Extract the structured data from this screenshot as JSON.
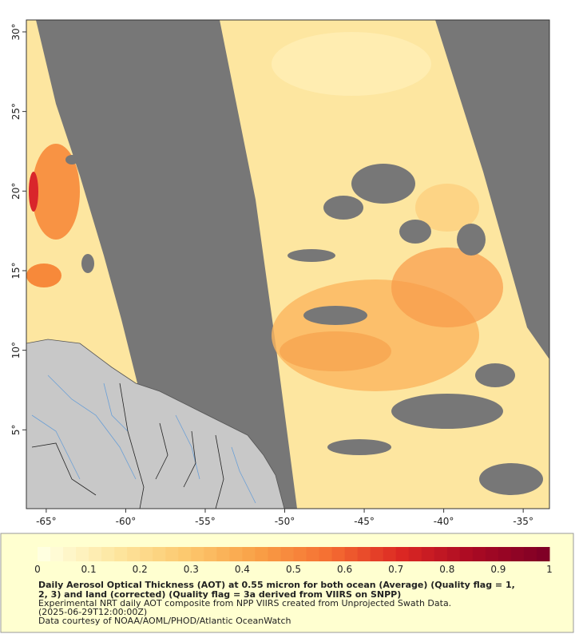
{
  "map": {
    "lonlim": [
      -66.25,
      -33.35
    ],
    "latlim": [
      0.05,
      30.75
    ],
    "lon_ticks": [
      {
        "value": -65,
        "label": "-65°"
      },
      {
        "value": -60,
        "label": "-60°"
      },
      {
        "value": -55,
        "label": "-55°"
      },
      {
        "value": -50,
        "label": "-50°"
      },
      {
        "value": -45,
        "label": "-45°"
      },
      {
        "value": -40,
        "label": "-40°"
      },
      {
        "value": -35,
        "label": "-35°"
      }
    ],
    "lat_ticks": [
      {
        "value": 5,
        "label": "5°"
      },
      {
        "value": 10,
        "label": "10°"
      },
      {
        "value": 15,
        "label": "15°"
      },
      {
        "value": 20,
        "label": "20°"
      },
      {
        "value": 25,
        "label": "25°"
      },
      {
        "value": 30,
        "label": "30°"
      }
    ]
  },
  "colorbar": {
    "clim": [
      0,
      1
    ],
    "ticks": [
      0,
      0.1,
      0.2,
      0.3,
      0.4,
      0.5,
      0.6,
      0.7,
      0.8,
      0.9,
      1
    ]
  },
  "caption": {
    "title_lines": [
      "Daily Aerosol Optical Thickness (AOT) at 0.55 micron for both ocean (Average) (Quality flag = 1,",
      "2, 3) and land (corrected) (Quality flag = 3a derived from VIIRS on SNPP)"
    ],
    "lines": [
      "Experimental NRT daily AOT composite from NPP VIIRS created from Unprojected Swath Data.",
      "(2025-06-29T12:00:00Z)",
      "Data courtesy of NOAA/AOML/PHOD/Atlantic OceanWatch"
    ]
  }
}
